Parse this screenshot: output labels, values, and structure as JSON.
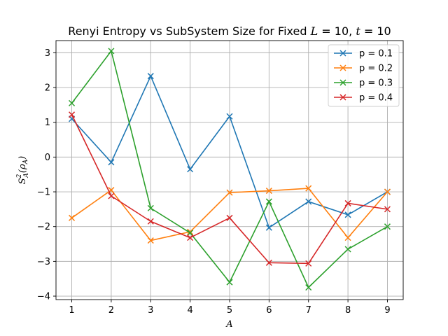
{
  "chart_data": {
    "type": "line",
    "title": "Renyi Entropy vs SubSystem Size for Fixed L = 10, t = 10",
    "xlabel": "A",
    "ylabel": "S²_A(ρ_A)",
    "x": [
      1,
      2,
      3,
      4,
      5,
      6,
      7,
      8,
      9
    ],
    "xlim": [
      0.6,
      9.4
    ],
    "ylim": [
      -4.1,
      3.35
    ],
    "xticks": [
      "1",
      "2",
      "3",
      "4",
      "5",
      "6",
      "7",
      "8",
      "9"
    ],
    "yticks": [
      "3",
      "2",
      "1",
      "0",
      "−1",
      "−2",
      "−3",
      "−4"
    ],
    "grid": true,
    "legend_position": "upper right",
    "marker": "x",
    "series": [
      {
        "name": "p = 0.1",
        "color": "#1f77b4",
        "values": [
          1.1,
          -0.15,
          2.33,
          -0.35,
          1.17,
          -2.03,
          -1.28,
          -1.66,
          -1.0
        ]
      },
      {
        "name": "p = 0.2",
        "color": "#ff7f0e",
        "values": [
          -1.75,
          -0.95,
          -2.4,
          -2.15,
          -1.02,
          -0.97,
          -0.9,
          -2.32,
          -1.0
        ]
      },
      {
        "name": "p = 0.3",
        "color": "#2ca02c",
        "values": [
          1.55,
          3.05,
          -1.47,
          -2.18,
          -3.6,
          -1.28,
          -3.75,
          -2.65,
          -2.0
        ]
      },
      {
        "name": "p = 0.4",
        "color": "#d62728",
        "values": [
          1.22,
          -1.12,
          -1.85,
          -2.32,
          -1.75,
          -3.04,
          -3.06,
          -1.33,
          -1.5
        ]
      }
    ]
  }
}
